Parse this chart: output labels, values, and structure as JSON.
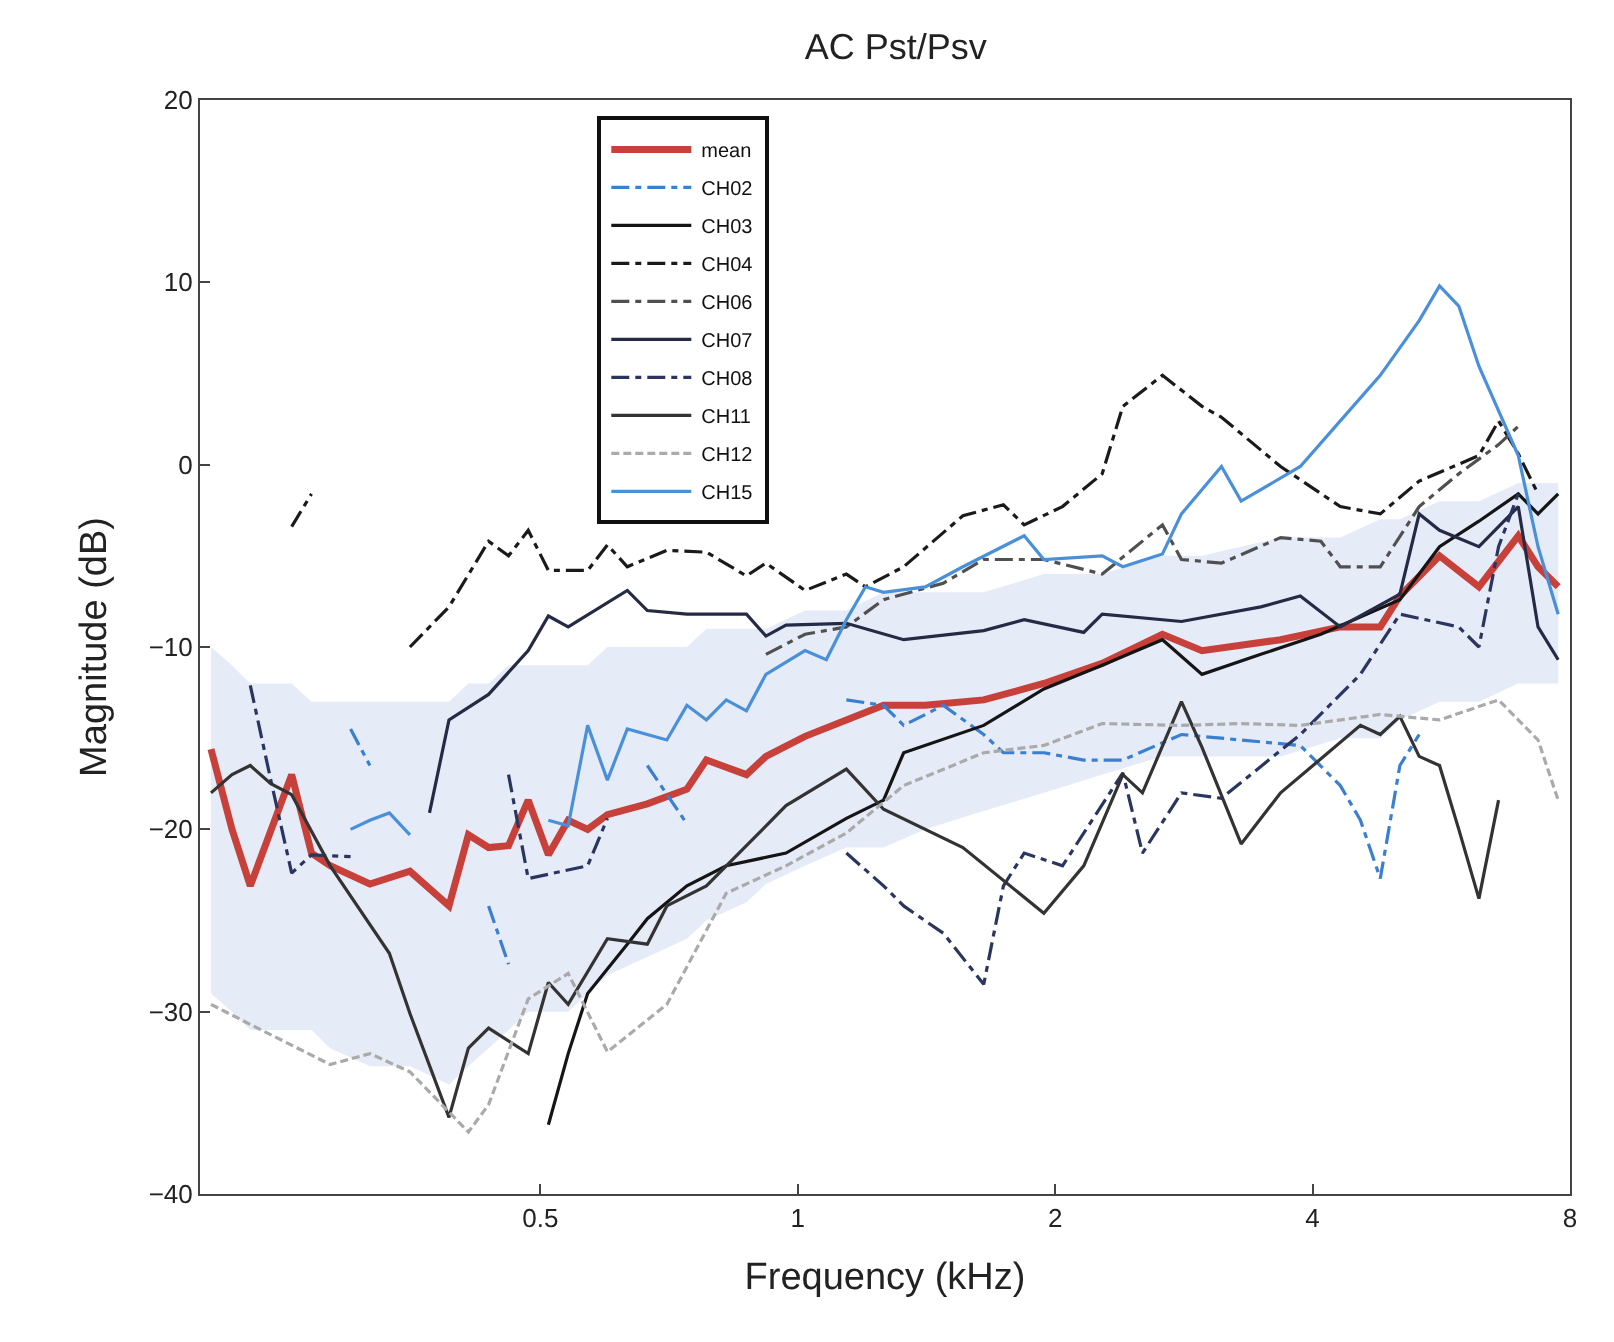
{
  "chart_data": {
    "type": "line",
    "title": "AC Pst/Psv",
    "xlabel": "Frequency (kHz)",
    "ylabel": "Magnitude (dB)",
    "log": "x",
    "xlim": [
      0.2,
      8
    ],
    "xticks": [
      0.5,
      1,
      2,
      4,
      8
    ],
    "ylim": [
      -40,
      20
    ],
    "yticks": [
      {
        "value": -40,
        "label": "−40"
      },
      {
        "value": -30,
        "label": "−30"
      },
      {
        "value": -20,
        "label": "−20"
      },
      {
        "value": -10,
        "label": "−10"
      },
      0,
      10,
      20
    ],
    "legend": "top left",
    "marker": "none",
    "series": [
      {
        "name": "mean",
        "color": "#c8403a",
        "line_style": "solid",
        "x": [
          0.206,
          0.218,
          0.229,
          0.256,
          0.27,
          0.284,
          0.316,
          0.352,
          0.391,
          0.412,
          0.435,
          0.459,
          0.484,
          0.511,
          0.539,
          0.568,
          0.599,
          0.667,
          0.742,
          0.782,
          0.871,
          0.918,
          1.02,
          1.14,
          1.26,
          1.41,
          1.65,
          1.94,
          2.27,
          2.67,
          2.97,
          3.67,
          4.31,
          4.8,
          5.06,
          5.63,
          6.26,
          6.96,
          7.34,
          7.75
        ],
        "values": [
          -15.6,
          -20,
          -23.1,
          -17,
          -21.3,
          -22,
          -23,
          -22.3,
          -24.2,
          -20.3,
          -21,
          -20.9,
          -18.4,
          -21.4,
          -19.5,
          -20,
          -19.2,
          -18.6,
          -17.8,
          -16.2,
          -17,
          -16,
          -14.9,
          -14,
          -13.2,
          -13.2,
          -12.9,
          -12,
          -10.9,
          -9.3,
          -10.2,
          -9.6,
          -8.9,
          -8.9,
          -7.2,
          -5,
          -6.7,
          -3.9,
          -5.6,
          -6.7
        ],
        "upper": [
          -10,
          -11,
          -12,
          -12,
          -13,
          -13,
          -13,
          -13,
          -13,
          -12,
          -12,
          -11,
          -11,
          -11,
          -11,
          -11,
          -10,
          -10,
          -10,
          -9,
          -9,
          -9,
          -8,
          -8,
          -7,
          -7,
          -7,
          -6,
          -6,
          -5,
          -5,
          -4,
          -4,
          -3,
          -3,
          -2,
          -2,
          -1,
          -1,
          -1
        ],
        "lower": [
          -29,
          -30,
          -31,
          -31,
          -31,
          -32,
          -33,
          -33,
          -34,
          -33,
          -32,
          -31,
          -30,
          -30,
          -30,
          -29,
          -28,
          -27,
          -26,
          -25,
          -24,
          -23,
          -22,
          -21,
          -21,
          -20,
          -19,
          -18,
          -17,
          -16,
          -16,
          -16,
          -15,
          -15,
          -14,
          -13,
          -13,
          -12,
          -12,
          -12
        ]
      },
      {
        "name": "CH02",
        "color": "#3a7fd0",
        "line_style": "dashdot",
        "x": [
          0.3,
          0.316,
          0.333,
          0.435,
          0.459,
          0.484,
          0.667,
          0.742,
          0.782,
          1.14,
          1.26,
          1.33,
          1.48,
          1.65,
          1.74,
          1.94,
          2.16,
          2.4,
          2.81,
          3.3,
          3.87,
          4.31,
          4.55,
          4.8,
          5.06,
          5.33
        ],
        "values": [
          -14.5,
          -16.5,
          null,
          -24.2,
          -27.4,
          null,
          -16.5,
          -19.7,
          null,
          -12.9,
          -13.2,
          -14.3,
          -13.2,
          -14.8,
          -15.8,
          -15.8,
          -16.2,
          -16.2,
          -14.8,
          -15.1,
          -15.4,
          -17.6,
          -19.5,
          -22.7,
          -16.5,
          -14.8
        ]
      },
      {
        "name": "CH03",
        "color": "#151515",
        "line_style": "solid",
        "x": [
          0.511,
          0.539,
          0.568,
          0.632,
          0.667,
          0.742,
          0.825,
          0.969,
          1.14,
          1.26,
          1.33,
          1.65,
          1.94,
          2.27,
          2.67,
          2.97,
          3.48,
          4.09,
          5.06,
          5.63,
          6.26,
          6.96,
          7.34,
          7.75
        ],
        "values": [
          -36.2,
          -32.3,
          -29,
          -26.3,
          -24.9,
          -23.1,
          -22,
          -21.3,
          -19.4,
          -18.4,
          -15.8,
          -14.3,
          -12.3,
          -11,
          -9.6,
          -11.5,
          -10.4,
          -9.3,
          -7.4,
          -4.5,
          -3.1,
          -1.6,
          -2.7,
          -1.6
        ]
      },
      {
        "name": "CH04",
        "color": "#1a1a1a",
        "line_style": "dashdot",
        "x": [
          0.256,
          0.27,
          0.284,
          0.352,
          0.391,
          0.435,
          0.459,
          0.484,
          0.511,
          0.568,
          0.599,
          0.632,
          0.703,
          0.782,
          0.871,
          0.918,
          1.02,
          1.14,
          1.2,
          1.33,
          1.56,
          1.74,
          1.84,
          2.04,
          2.27,
          2.4,
          2.67,
          2.97,
          3.13,
          3.67,
          4.31,
          4.8,
          5.33,
          6.26,
          6.6,
          6.96,
          7.34
        ],
        "values": [
          -3.4,
          -1.6,
          null,
          -10,
          -7.8,
          -4.2,
          -5,
          -3.6,
          -5.8,
          -5.8,
          -4.4,
          -5.6,
          -4.7,
          -4.8,
          -6.1,
          -5.4,
          -6.9,
          -6,
          -6.7,
          -5.6,
          -2.8,
          -2.2,
          -3.3,
          -2.3,
          -0.5,
          3.2,
          4.9,
          3.2,
          2.6,
          -0.1,
          -2.3,
          -2.7,
          -0.9,
          0.5,
          2.4,
          0.6,
          -1.6
        ]
      },
      {
        "name": "CH06",
        "color": "#505050",
        "line_style": "dashdot",
        "x": [
          0.918,
          1.02,
          1.14,
          1.26,
          1.48,
          1.65,
          1.94,
          2.27,
          2.67,
          2.81,
          3.13,
          3.67,
          4.09,
          4.31,
          4.8,
          5.33,
          5.93,
          6.6,
          6.96
        ],
        "values": [
          -10.4,
          -9.3,
          -8.9,
          -7.4,
          -6.5,
          -5.2,
          -5.2,
          -6,
          -3.3,
          -5.2,
          -5.4,
          -4,
          -4.2,
          -5.6,
          -5.6,
          -2.3,
          -0.5,
          1.1,
          2.1
        ]
      },
      {
        "name": "CH07",
        "color": "#252a45",
        "line_style": "solid",
        "x": [
          0.371,
          0.391,
          0.435,
          0.484,
          0.511,
          0.539,
          0.632,
          0.667,
          0.742,
          0.871,
          0.918,
          0.969,
          1.14,
          1.33,
          1.65,
          1.84,
          2.16,
          2.27,
          2.81,
          3.48,
          3.87,
          4.31,
          5.06,
          5.33,
          5.63,
          6.26,
          6.96,
          7.34,
          7.75
        ],
        "values": [
          -19.1,
          -14,
          -12.6,
          -10.2,
          -8.3,
          -8.9,
          -6.9,
          -8,
          -8.2,
          -8.2,
          -9.4,
          -8.8,
          -8.7,
          -9.6,
          -9.1,
          -8.5,
          -9.2,
          -8.2,
          -8.6,
          -7.8,
          -7.2,
          -8.9,
          -7.1,
          -2.7,
          -3.6,
          -4.5,
          -2.3,
          -8.9,
          -10.7
        ]
      },
      {
        "name": "CH08",
        "color": "#2a3560",
        "line_style": "dashdot",
        "x": [
          0.229,
          0.242,
          0.256,
          0.27,
          0.3,
          0.316,
          0.459,
          0.484,
          0.568,
          0.599,
          0.632,
          1.14,
          1.26,
          1.33,
          1.48,
          1.65,
          1.74,
          1.84,
          2.04,
          2.4,
          2.53,
          2.81,
          3.13,
          3.87,
          4.55,
          5.06,
          5.93,
          6.26,
          6.6,
          6.96
        ],
        "values": [
          -12.1,
          -17.3,
          -22.4,
          -21.4,
          -21.5,
          null,
          -17,
          -22.7,
          -22,
          -19.4,
          null,
          -21.3,
          -23.1,
          -24.2,
          -25.7,
          -28.5,
          -23.1,
          -21.3,
          -22,
          -16.9,
          -21.3,
          -18,
          -18.3,
          -14.8,
          -11.5,
          -8.2,
          -8.9,
          -10,
          -4.5,
          -1.6
        ]
      },
      {
        "name": "CH11",
        "color": "#333333",
        "line_style": "solid",
        "x": [
          0.206,
          0.218,
          0.229,
          0.242,
          0.256,
          0.284,
          0.333,
          0.352,
          0.391,
          0.412,
          0.435,
          0.484,
          0.511,
          0.539,
          0.599,
          0.667,
          0.703,
          0.782,
          0.871,
          0.969,
          1.14,
          1.26,
          1.56,
          1.94,
          2.16,
          2.4,
          2.53,
          2.81,
          2.97,
          3.3,
          3.67,
          4.55,
          4.8,
          5.06,
          5.33,
          5.63,
          5.93,
          6.26,
          6.6
        ],
        "values": [
          -18,
          -17,
          -16.5,
          -17.5,
          -18.1,
          -22,
          -26.8,
          -30.1,
          -35.8,
          -32,
          -30.9,
          -32.3,
          -28.4,
          -29.6,
          -26,
          -26.3,
          -24.2,
          -23.1,
          -20.9,
          -18.7,
          -16.7,
          -18.9,
          -21,
          -24.6,
          -22,
          -17,
          -18,
          -13,
          -15.5,
          -20.8,
          -18,
          -14.3,
          -14.8,
          -13.8,
          -16,
          -16.5,
          -20,
          -23.8,
          -18.4
        ]
      },
      {
        "name": "CH12",
        "color": "#aaaaaa",
        "line_style": "dashed",
        "x": [
          0.206,
          0.229,
          0.284,
          0.316,
          0.352,
          0.412,
          0.435,
          0.484,
          0.539,
          0.599,
          0.703,
          0.825,
          0.969,
          1.14,
          1.33,
          1.65,
          1.94,
          2.27,
          2.81,
          3.3,
          3.87,
          4.8,
          5.63,
          6.6,
          7.34,
          7.75
        ],
        "values": [
          -29.6,
          -30.7,
          -32.9,
          -32.3,
          -33.3,
          -36.6,
          -35.1,
          -29.3,
          -27.9,
          -32.2,
          -29.6,
          -23.5,
          -22,
          -20.2,
          -17.6,
          -15.8,
          -15.4,
          -14.2,
          -14.3,
          -14.2,
          -14.3,
          -13.7,
          -14,
          -12.9,
          -15.1,
          -18.4
        ]
      },
      {
        "name": "CH15",
        "color": "#4a90d9",
        "line_style": "solid",
        "x": [
          0.3,
          0.316,
          0.333,
          0.352,
          0.412,
          0.511,
          0.539,
          0.568,
          0.599,
          0.632,
          0.703,
          0.742,
          0.782,
          0.825,
          0.871,
          0.918,
          1.02,
          1.08,
          1.14,
          1.2,
          1.26,
          1.41,
          1.56,
          1.84,
          1.94,
          2.27,
          2.4,
          2.67,
          2.81,
          3.13,
          3.3,
          3.87,
          4.31,
          4.8,
          5.33,
          5.63,
          5.93,
          6.26,
          6.96,
          7.34,
          7.75
        ],
        "values": [
          -20,
          -19.5,
          -19.1,
          -20.3,
          null,
          -19.5,
          -19.8,
          -14.3,
          -17.3,
          -14.5,
          -15.1,
          -13.2,
          -14,
          -12.9,
          -13.5,
          -11.5,
          -10.2,
          -10.7,
          -8.5,
          -6.7,
          -7,
          -6.7,
          -5.6,
          -3.9,
          -5.2,
          -5,
          -5.6,
          -4.9,
          -2.7,
          -0.1,
          -2,
          -0.1,
          2.4,
          4.9,
          7.9,
          9.8,
          8.7,
          5.4,
          0.5,
          -4.5,
          -8.2
        ]
      }
    ]
  }
}
